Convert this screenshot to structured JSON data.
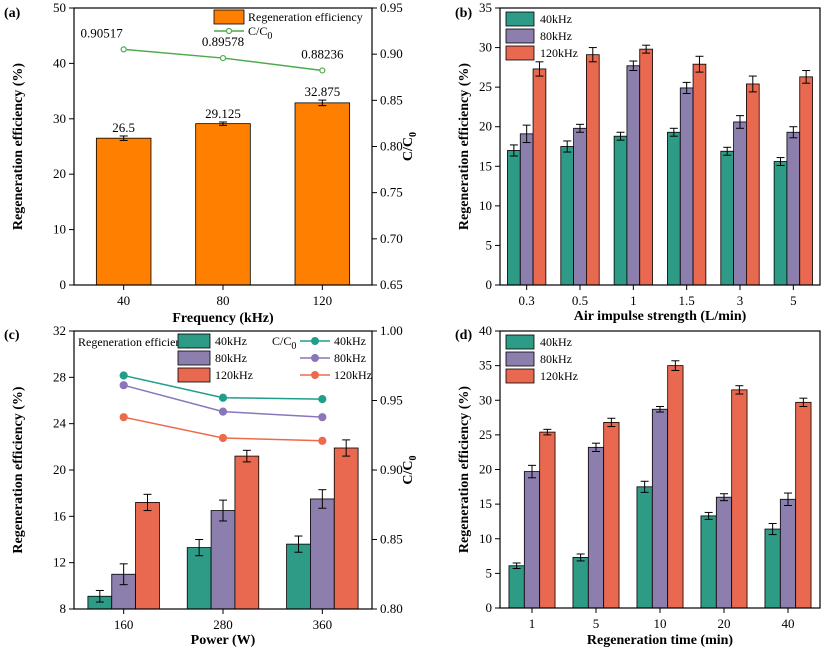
{
  "colors": {
    "orange": "#ff7f00",
    "green": "#2e9b87",
    "purple": "#8c7fae",
    "red": "#e8694f",
    "line_green": "#4daa4d",
    "line_teal": "#209e8a",
    "line_purple": "#8a76ba",
    "line_red": "#ee6a4c"
  },
  "chart_data": [
    {
      "panel": "(a)",
      "type": "bar",
      "xlabel": "Frequency (kHz)",
      "ylabel": "Regeneration efficiency (%)",
      "y2label": "C/C",
      "y2label_sub": "0",
      "categories": [
        "40",
        "80",
        "120"
      ],
      "ylim": [
        0,
        50
      ],
      "yticks": [
        0,
        10,
        20,
        30,
        40,
        50
      ],
      "y2lim": [
        0.65,
        0.95
      ],
      "y2ticks": [
        "0.65",
        "0.70",
        "0.75",
        "0.80",
        "0.85",
        "0.90",
        "0.95"
      ],
      "series": [
        {
          "name": "Regeneration efficiency",
          "values": [
            26.5,
            29.125,
            32.875
          ],
          "errors": [
            0.4,
            0.3,
            0.5
          ],
          "labels": [
            "26.5",
            "29.125",
            "32.875"
          ],
          "color": "#ff7f00"
        }
      ],
      "line_series": [
        {
          "name": "C/C",
          "name_sub": "0",
          "values": [
            0.90517,
            0.89578,
            0.88236
          ],
          "labels": [
            "0.90517",
            "0.89578",
            "0.88236"
          ],
          "color": "#4daa4d"
        }
      ]
    },
    {
      "panel": "(b)",
      "type": "bar",
      "xlabel": "Air impulse strength (L/min)",
      "ylabel": "Regeneration efficiency (%)",
      "categories": [
        "0.3",
        "0.5",
        "1",
        "1.5",
        "3",
        "5"
      ],
      "ylim": [
        0,
        35
      ],
      "yticks": [
        0,
        5,
        10,
        15,
        20,
        25,
        30,
        35
      ],
      "series": [
        {
          "name": "40kHz",
          "values": [
            17.0,
            17.5,
            18.8,
            19.3,
            16.9,
            15.6
          ],
          "errors": [
            0.7,
            0.7,
            0.5,
            0.5,
            0.5,
            0.5
          ],
          "color": "#2e9b87"
        },
        {
          "name": "80kHz",
          "values": [
            19.1,
            19.8,
            27.7,
            24.9,
            20.6,
            19.3
          ],
          "errors": [
            1.1,
            0.5,
            0.6,
            0.7,
            0.8,
            0.7
          ],
          "color": "#8c7fae"
        },
        {
          "name": "120kHz",
          "values": [
            27.3,
            29.1,
            29.8,
            27.9,
            25.4,
            26.3
          ],
          "errors": [
            0.9,
            0.9,
            0.5,
            1.0,
            1.0,
            0.8
          ],
          "color": "#e8694f"
        }
      ]
    },
    {
      "panel": "(c)",
      "type": "bar",
      "xlabel": "Power (W)",
      "ylabel": "Regeneration efficiency (%)",
      "y2label": "C/C",
      "y2label_sub": "0",
      "categories": [
        "160",
        "280",
        "360"
      ],
      "ylim": [
        8,
        32
      ],
      "yticks": [
        8,
        12,
        16,
        20,
        24,
        28,
        32
      ],
      "y2lim": [
        0.8,
        1.0
      ],
      "y2ticks": [
        "0.80",
        "0.85",
        "0.90",
        "0.95",
        "1.00"
      ],
      "legend_title_bars": "Regeneration efficiency",
      "legend_title_lines": "C/C",
      "legend_title_lines_sub": "0",
      "series": [
        {
          "name": "40kHz",
          "values": [
            9.1,
            13.3,
            13.6
          ],
          "errors": [
            0.5,
            0.7,
            0.7
          ],
          "color": "#2e9b87"
        },
        {
          "name": "80kHz",
          "values": [
            11.0,
            16.5,
            17.5
          ],
          "errors": [
            0.9,
            0.9,
            0.8
          ],
          "color": "#8c7fae"
        },
        {
          "name": "120kHz",
          "values": [
            17.2,
            21.2,
            21.9
          ],
          "errors": [
            0.7,
            0.5,
            0.7
          ],
          "color": "#e8694f"
        }
      ],
      "line_series": [
        {
          "name": "40kHz",
          "values": [
            0.968,
            0.952,
            0.951
          ],
          "color": "#209e8a"
        },
        {
          "name": "80kHz",
          "values": [
            0.961,
            0.942,
            0.938
          ],
          "color": "#8a76ba"
        },
        {
          "name": "120kHz",
          "values": [
            0.938,
            0.923,
            0.921
          ],
          "color": "#ee6a4c"
        }
      ]
    },
    {
      "panel": "(d)",
      "type": "bar",
      "xlabel": "Regeneration time (min)",
      "ylabel": "Regeneration efficiency (%)",
      "categories": [
        "1",
        "5",
        "10",
        "20",
        "40"
      ],
      "ylim": [
        0,
        40
      ],
      "yticks": [
        0,
        5,
        10,
        15,
        20,
        25,
        30,
        35,
        40
      ],
      "series": [
        {
          "name": "40kHz",
          "values": [
            6.1,
            7.3,
            17.5,
            13.3,
            11.4
          ],
          "errors": [
            0.4,
            0.5,
            0.8,
            0.5,
            0.8
          ],
          "color": "#2e9b87"
        },
        {
          "name": "80kHz",
          "values": [
            19.7,
            23.2,
            28.7,
            16.0,
            15.7
          ],
          "errors": [
            0.9,
            0.6,
            0.4,
            0.5,
            0.9
          ],
          "color": "#8c7fae"
        },
        {
          "name": "120kHz",
          "values": [
            25.4,
            26.8,
            35.0,
            31.5,
            29.7
          ],
          "errors": [
            0.4,
            0.6,
            0.7,
            0.6,
            0.6
          ],
          "color": "#e8694f"
        }
      ]
    }
  ]
}
